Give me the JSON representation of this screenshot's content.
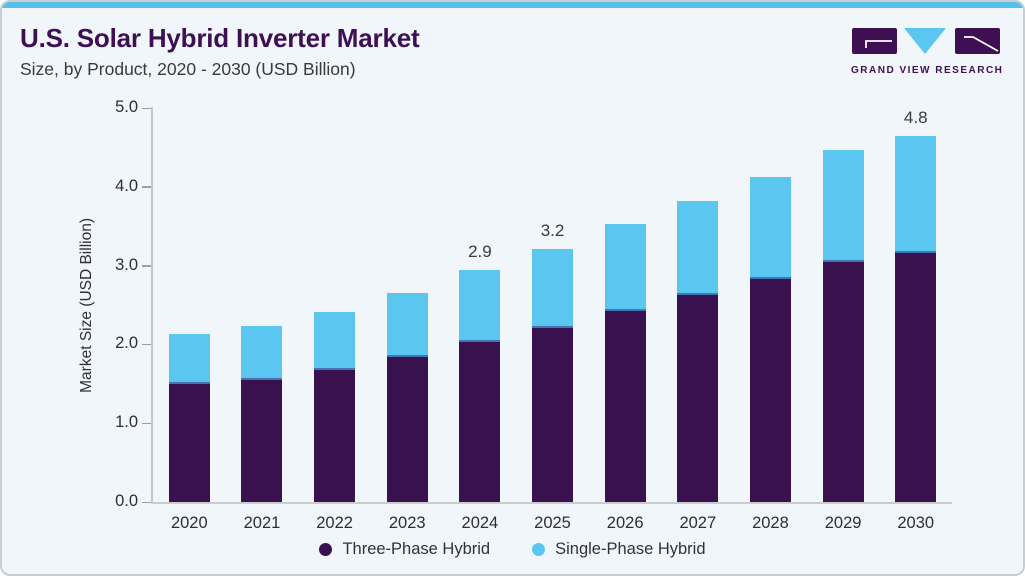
{
  "card": {
    "background": "#f0f6fa",
    "border_color": "#c9ced3",
    "accent_bar_color": "#55c0eb"
  },
  "header": {
    "title": "U.S. Solar Hybrid Inverter Market",
    "subtitle": "Size, by Product, 2020 - 2030 (USD Billion)",
    "title_color": "#3e1053",
    "subtitle_color": "#3a3a3a"
  },
  "logo": {
    "text": "GRAND VIEW RESEARCH",
    "purple": "#3e1053",
    "blue": "#5bc7f0"
  },
  "chart_data": {
    "type": "bar",
    "stacked": true,
    "title": "U.S. Solar Hybrid Inverter Market Size, by Product, 2020 - 2030 (USD Billion)",
    "categories": [
      "2020",
      "2021",
      "2022",
      "2023",
      "2024",
      "2025",
      "2026",
      "2027",
      "2028",
      "2029",
      "2030"
    ],
    "series": [
      {
        "name": "Three-Phase Hybrid",
        "color": "#38114e",
        "values": [
          1.5,
          1.55,
          1.67,
          1.84,
          2.03,
          2.21,
          2.42,
          2.63,
          2.83,
          3.05,
          3.26
        ]
      },
      {
        "name": "Single-Phase Hybrid",
        "color": "#5bc7f0",
        "values": [
          0.64,
          0.69,
          0.73,
          0.81,
          0.91,
          1.0,
          1.1,
          1.19,
          1.29,
          1.42,
          1.54
        ]
      }
    ],
    "totals": [
      2.14,
      2.24,
      2.4,
      2.65,
      2.94,
      3.21,
      3.52,
      3.82,
      4.12,
      4.47,
      4.8
    ],
    "annotations": [
      {
        "category": "2024",
        "label": "2.9"
      },
      {
        "category": "2025",
        "label": "3.2"
      },
      {
        "category": "2030",
        "label": "4.8"
      }
    ],
    "xlabel": "",
    "ylabel": "Market Size (USD Billion)",
    "ylim": [
      0,
      5
    ],
    "yticks": [
      "0.0",
      "1.0",
      "2.0",
      "3.0",
      "4.0",
      "5.0"
    ],
    "grid": false,
    "legend_position": "bottom"
  }
}
